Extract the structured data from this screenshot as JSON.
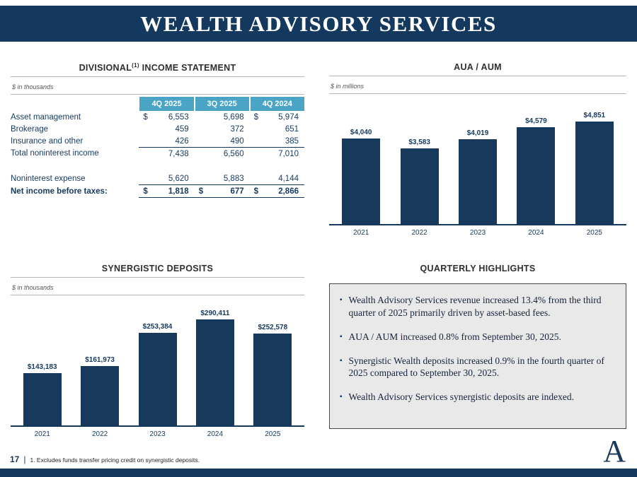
{
  "title": "WEALTH ADVISORY SERVICES",
  "colors": {
    "navy": "#15395e",
    "teal": "#4ba4c5",
    "highlight_bg": "#e9e9e9"
  },
  "income_statement": {
    "heading_main": "DIVISIONAL",
    "heading_sup": "(1)",
    "heading_rest": " INCOME STATEMENT",
    "units": "$ in thousands",
    "columns": [
      "4Q 2025",
      "3Q 2025",
      "4Q 2024"
    ],
    "rows": [
      {
        "label": "Asset management",
        "cells": [
          {
            "d": "$",
            "v": "6,553"
          },
          {
            "d": "",
            "v": "5,698"
          },
          {
            "d": "$",
            "v": "5,974"
          }
        ]
      },
      {
        "label": "Brokerage",
        "cells": [
          {
            "d": "",
            "v": "459"
          },
          {
            "d": "",
            "v": "372"
          },
          {
            "d": "",
            "v": "651"
          }
        ]
      },
      {
        "label": "Insurance and other",
        "cells": [
          {
            "d": "",
            "v": "426"
          },
          {
            "d": "",
            "v": "490"
          },
          {
            "d": "",
            "v": "385"
          }
        ]
      },
      {
        "label": "Total noninterest income",
        "cells": [
          {
            "d": "",
            "v": "7,438"
          },
          {
            "d": "",
            "v": "6,560"
          },
          {
            "d": "",
            "v": "7,010"
          }
        ]
      },
      {
        "label": "Noninterest expense",
        "cells": [
          {
            "d": "",
            "v": "5,620"
          },
          {
            "d": "",
            "v": "5,883"
          },
          {
            "d": "",
            "v": "4,144"
          }
        ]
      },
      {
        "label": "Net income before taxes:",
        "cells": [
          {
            "d": "$",
            "v": "1,818"
          },
          {
            "d": "$",
            "v": "677"
          },
          {
            "d": "$",
            "v": "2,866"
          }
        ]
      }
    ]
  },
  "chart_data": [
    {
      "type": "bar",
      "title": "AUA / AUM",
      "units": "$ in millions",
      "categories": [
        "2021",
        "2022",
        "2023",
        "2024",
        "2025"
      ],
      "values": [
        4040,
        3583,
        4019,
        4579,
        4851
      ],
      "labels": [
        "$4,040",
        "$3,583",
        "$4,019",
        "$4,579",
        "$4,851"
      ],
      "xlabel": "",
      "ylabel": "",
      "ylim": [
        0,
        4851
      ],
      "grid": false,
      "legend": "none"
    },
    {
      "type": "bar",
      "title": "SYNERGISTIC DEPOSITS",
      "units": "$ in thousands",
      "categories": [
        "2021",
        "2022",
        "2023",
        "2024",
        "2025"
      ],
      "values": [
        143183,
        161973,
        253384,
        290411,
        252578
      ],
      "labels": [
        "$143,183",
        "$161,973",
        "$253,384",
        "$290,411",
        "$252,578"
      ],
      "xlabel": "",
      "ylabel": "",
      "ylim": [
        0,
        290411
      ],
      "grid": false,
      "legend": "none"
    }
  ],
  "highlights": {
    "heading": "QUARTERLY HIGHLIGHTS",
    "bullet": "▪",
    "items": [
      "Wealth Advisory Services revenue increased 13.4% from the third quarter of 2025 primarily driven by asset-based fees.",
      "AUA / AUM increased 0.8% from September 30, 2025.",
      "Synergistic Wealth deposits increased 0.9% in the fourth quarter of 2025 compared to September 30, 2025.",
      "Wealth Advisory Services synergistic deposits are indexed."
    ]
  },
  "footer": {
    "page_number": "17",
    "divider": "|",
    "footnote": "1. Excludes funds transfer pricing credit on synergistic deposits.",
    "logo_letter": "A"
  }
}
